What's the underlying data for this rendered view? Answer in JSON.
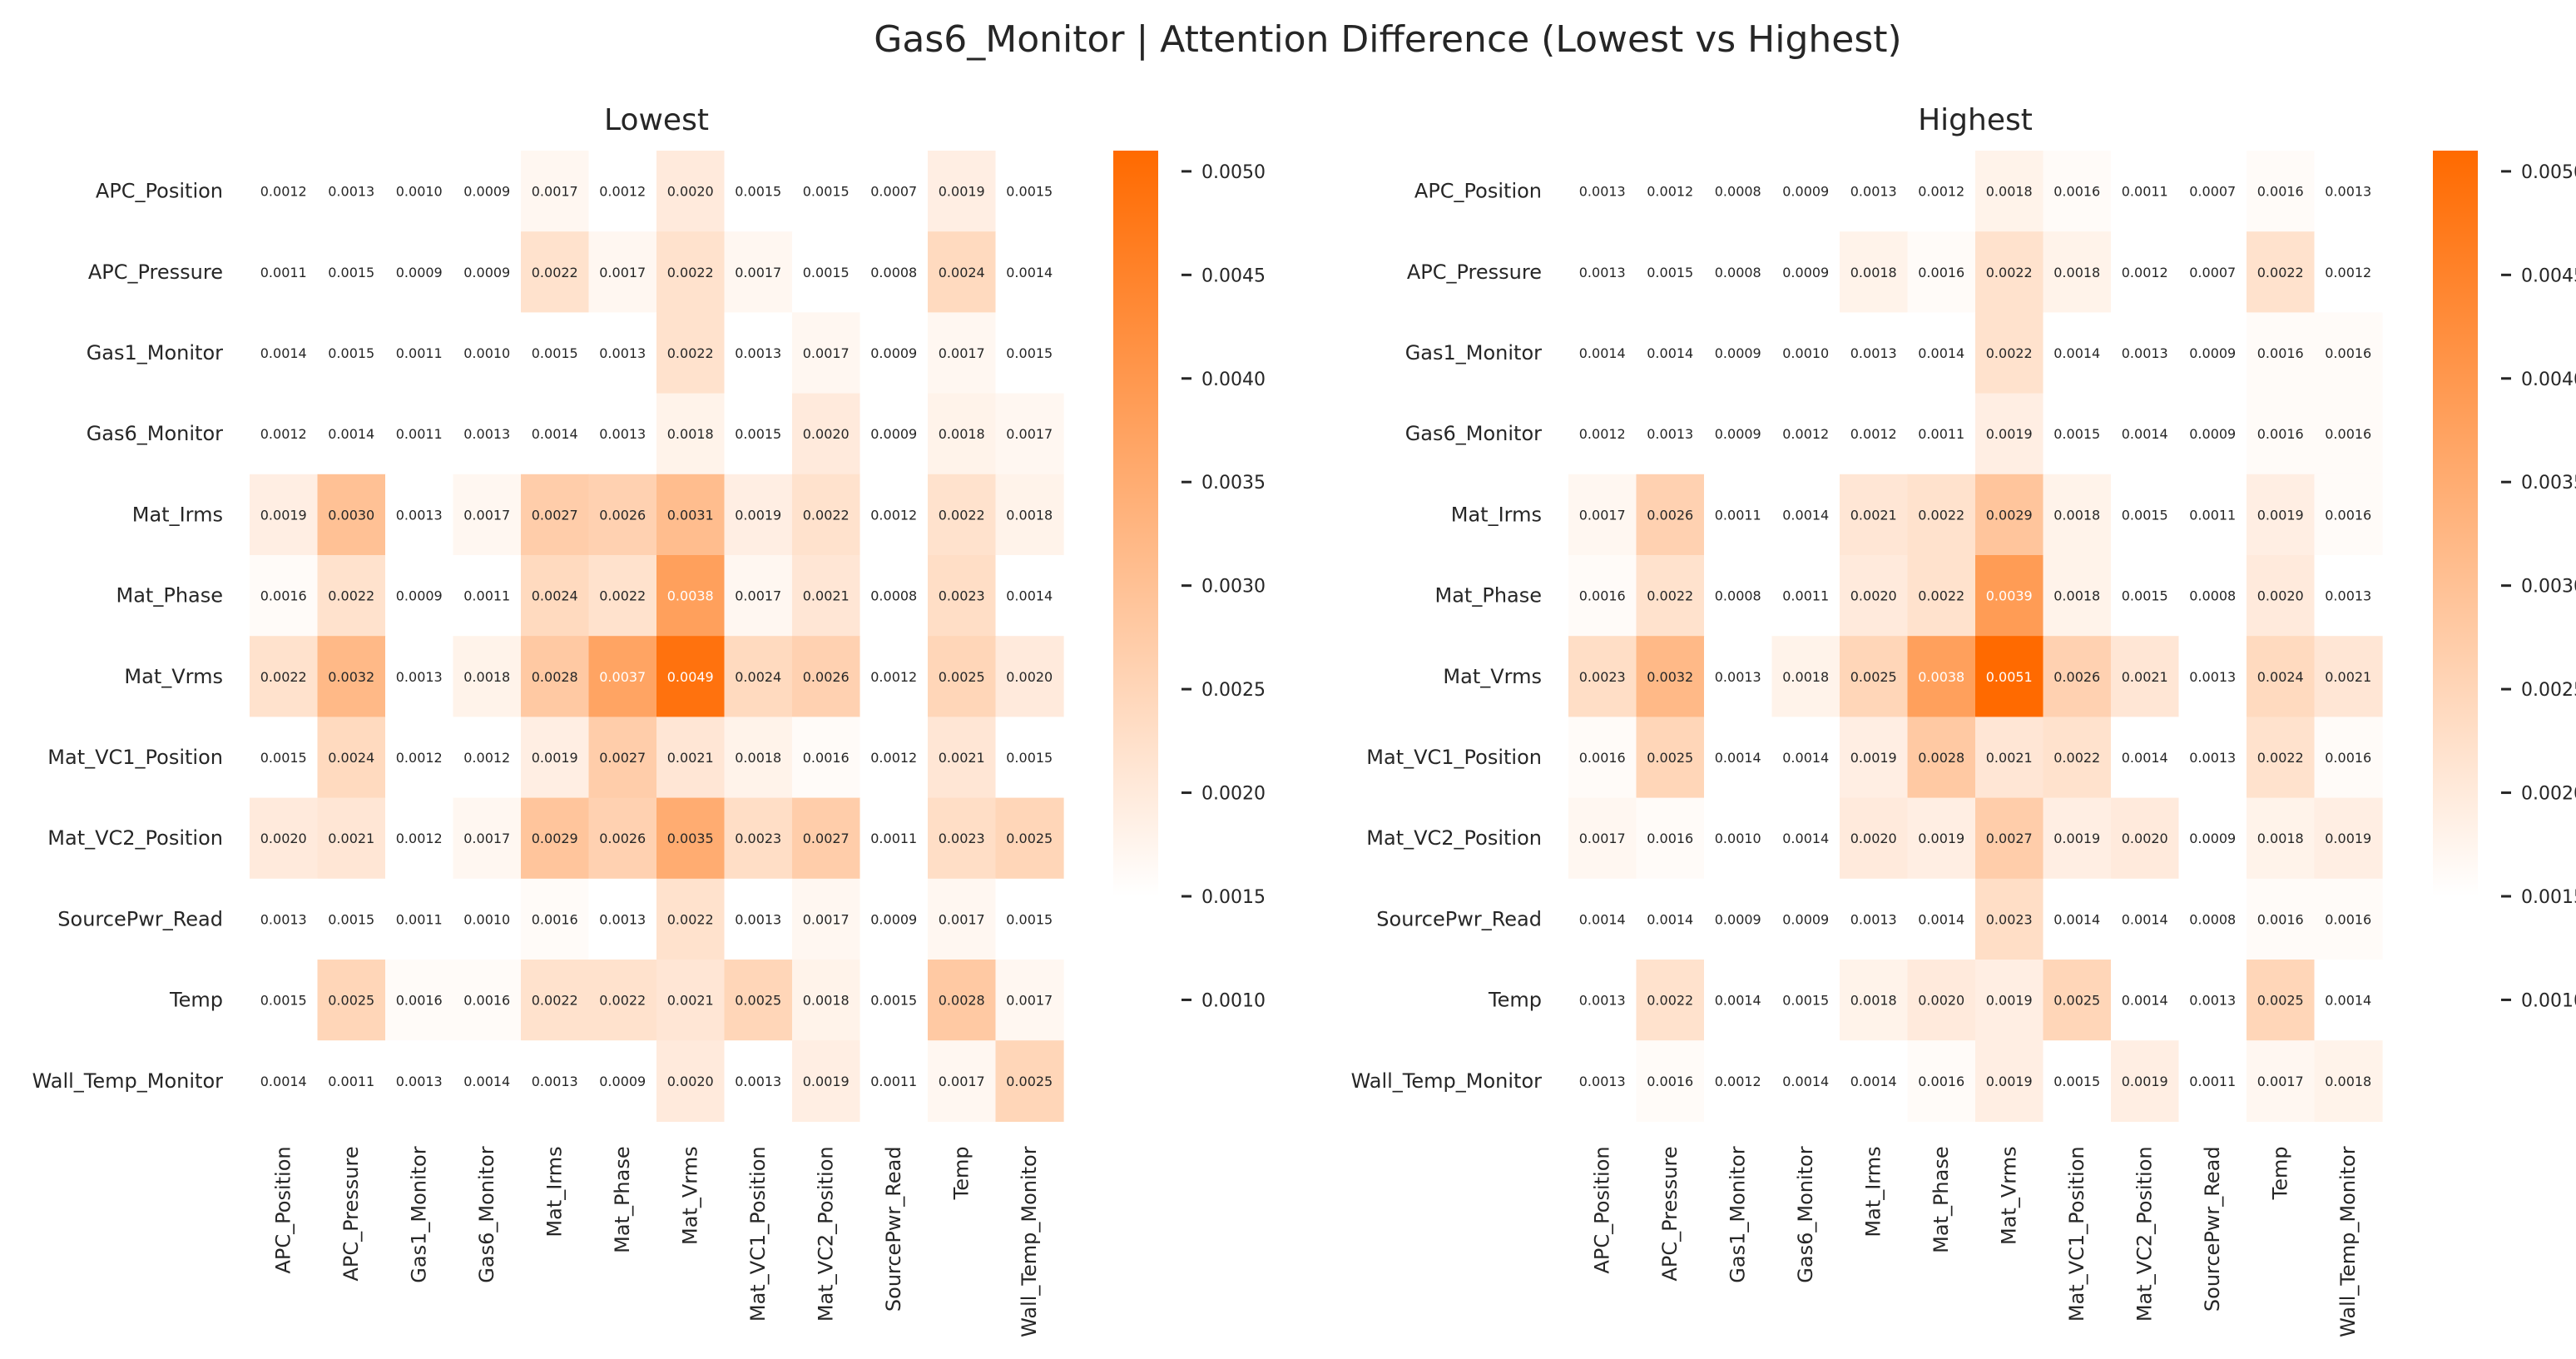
{
  "figure": {
    "title": "Gas6_Monitor | Attention Difference (Lowest vs Highest)"
  },
  "colorbar": {
    "min": 0.0015,
    "max": 0.0051,
    "low_color": "#ffffff",
    "high_color": "#ff6a00",
    "ticks": [
      "0.0010",
      "0.0015",
      "0.0020",
      "0.0025",
      "0.0030",
      "0.0035",
      "0.0040",
      "0.0045",
      "0.0050"
    ]
  },
  "chart_data": [
    {
      "type": "heatmap",
      "title": "Lowest",
      "rows": [
        "APC_Position",
        "APC_Pressure",
        "Gas1_Monitor",
        "Gas6_Monitor",
        "Mat_Irms",
        "Mat_Phase",
        "Mat_Vrms",
        "Mat_VC1_Position",
        "Mat_VC2_Position",
        "SourcePwr_Read",
        "Temp",
        "Wall_Temp_Monitor"
      ],
      "columns": [
        "APC_Position",
        "APC_Pressure",
        "Gas1_Monitor",
        "Gas6_Monitor",
        "Mat_Irms",
        "Mat_Phase",
        "Mat_Vrms",
        "Mat_VC1_Position",
        "Mat_VC2_Position",
        "SourcePwr_Read",
        "Temp",
        "Wall_Temp_Monitor"
      ],
      "values": [
        [
          "0.0012",
          "0.0013",
          "0.0010",
          "0.0009",
          "0.0017",
          "0.0012",
          "0.0020",
          "0.0015",
          "0.0015",
          "0.0007",
          "0.0019",
          "0.0015"
        ],
        [
          "0.0011",
          "0.0015",
          "0.0009",
          "0.0009",
          "0.0022",
          "0.0017",
          "0.0022",
          "0.0017",
          "0.0015",
          "0.0008",
          "0.0024",
          "0.0014"
        ],
        [
          "0.0014",
          "0.0015",
          "0.0011",
          "0.0010",
          "0.0015",
          "0.0013",
          "0.0022",
          "0.0013",
          "0.0017",
          "0.0009",
          "0.0017",
          "0.0015"
        ],
        [
          "0.0012",
          "0.0014",
          "0.0011",
          "0.0013",
          "0.0014",
          "0.0013",
          "0.0018",
          "0.0015",
          "0.0020",
          "0.0009",
          "0.0018",
          "0.0017"
        ],
        [
          "0.0019",
          "0.0030",
          "0.0013",
          "0.0017",
          "0.0027",
          "0.0026",
          "0.0031",
          "0.0019",
          "0.0022",
          "0.0012",
          "0.0022",
          "0.0018"
        ],
        [
          "0.0016",
          "0.0022",
          "0.0009",
          "0.0011",
          "0.0024",
          "0.0022",
          "0.0038",
          "0.0017",
          "0.0021",
          "0.0008",
          "0.0023",
          "0.0014"
        ],
        [
          "0.0022",
          "0.0032",
          "0.0013",
          "0.0018",
          "0.0028",
          "0.0037",
          "0.0049",
          "0.0024",
          "0.0026",
          "0.0012",
          "0.0025",
          "0.0020"
        ],
        [
          "0.0015",
          "0.0024",
          "0.0012",
          "0.0012",
          "0.0019",
          "0.0027",
          "0.0021",
          "0.0018",
          "0.0016",
          "0.0012",
          "0.0021",
          "0.0015"
        ],
        [
          "0.0020",
          "0.0021",
          "0.0012",
          "0.0017",
          "0.0029",
          "0.0026",
          "0.0035",
          "0.0023",
          "0.0027",
          "0.0011",
          "0.0023",
          "0.0025"
        ],
        [
          "0.0013",
          "0.0015",
          "0.0011",
          "0.0010",
          "0.0016",
          "0.0013",
          "0.0022",
          "0.0013",
          "0.0017",
          "0.0009",
          "0.0017",
          "0.0015"
        ],
        [
          "0.0015",
          "0.0025",
          "0.0016",
          "0.0016",
          "0.0022",
          "0.0022",
          "0.0021",
          "0.0025",
          "0.0018",
          "0.0015",
          "0.0028",
          "0.0017"
        ],
        [
          "0.0014",
          "0.0011",
          "0.0013",
          "0.0014",
          "0.0013",
          "0.0009",
          "0.0020",
          "0.0013",
          "0.0019",
          "0.0011",
          "0.0017",
          "0.0025"
        ]
      ]
    },
    {
      "type": "heatmap",
      "title": "Highest",
      "rows": [
        "APC_Position",
        "APC_Pressure",
        "Gas1_Monitor",
        "Gas6_Monitor",
        "Mat_Irms",
        "Mat_Phase",
        "Mat_Vrms",
        "Mat_VC1_Position",
        "Mat_VC2_Position",
        "SourcePwr_Read",
        "Temp",
        "Wall_Temp_Monitor"
      ],
      "columns": [
        "APC_Position",
        "APC_Pressure",
        "Gas1_Monitor",
        "Gas6_Monitor",
        "Mat_Irms",
        "Mat_Phase",
        "Mat_Vrms",
        "Mat_VC1_Position",
        "Mat_VC2_Position",
        "SourcePwr_Read",
        "Temp",
        "Wall_Temp_Monitor"
      ],
      "values": [
        [
          "0.0013",
          "0.0012",
          "0.0008",
          "0.0009",
          "0.0013",
          "0.0012",
          "0.0018",
          "0.0016",
          "0.0011",
          "0.0007",
          "0.0016",
          "0.0013"
        ],
        [
          "0.0013",
          "0.0015",
          "0.0008",
          "0.0009",
          "0.0018",
          "0.0016",
          "0.0022",
          "0.0018",
          "0.0012",
          "0.0007",
          "0.0022",
          "0.0012"
        ],
        [
          "0.0014",
          "0.0014",
          "0.0009",
          "0.0010",
          "0.0013",
          "0.0014",
          "0.0022",
          "0.0014",
          "0.0013",
          "0.0009",
          "0.0016",
          "0.0016"
        ],
        [
          "0.0012",
          "0.0013",
          "0.0009",
          "0.0012",
          "0.0012",
          "0.0011",
          "0.0019",
          "0.0015",
          "0.0014",
          "0.0009",
          "0.0016",
          "0.0016"
        ],
        [
          "0.0017",
          "0.0026",
          "0.0011",
          "0.0014",
          "0.0021",
          "0.0022",
          "0.0029",
          "0.0018",
          "0.0015",
          "0.0011",
          "0.0019",
          "0.0016"
        ],
        [
          "0.0016",
          "0.0022",
          "0.0008",
          "0.0011",
          "0.0020",
          "0.0022",
          "0.0039",
          "0.0018",
          "0.0015",
          "0.0008",
          "0.0020",
          "0.0013"
        ],
        [
          "0.0023",
          "0.0032",
          "0.0013",
          "0.0018",
          "0.0025",
          "0.0038",
          "0.0051",
          "0.0026",
          "0.0021",
          "0.0013",
          "0.0024",
          "0.0021"
        ],
        [
          "0.0016",
          "0.0025",
          "0.0014",
          "0.0014",
          "0.0019",
          "0.0028",
          "0.0021",
          "0.0022",
          "0.0014",
          "0.0013",
          "0.0022",
          "0.0016"
        ],
        [
          "0.0017",
          "0.0016",
          "0.0010",
          "0.0014",
          "0.0020",
          "0.0019",
          "0.0027",
          "0.0019",
          "0.0020",
          "0.0009",
          "0.0018",
          "0.0019"
        ],
        [
          "0.0014",
          "0.0014",
          "0.0009",
          "0.0009",
          "0.0013",
          "0.0014",
          "0.0023",
          "0.0014",
          "0.0014",
          "0.0008",
          "0.0016",
          "0.0016"
        ],
        [
          "0.0013",
          "0.0022",
          "0.0014",
          "0.0015",
          "0.0018",
          "0.0020",
          "0.0019",
          "0.0025",
          "0.0014",
          "0.0013",
          "0.0025",
          "0.0014"
        ],
        [
          "0.0013",
          "0.0016",
          "0.0012",
          "0.0014",
          "0.0014",
          "0.0016",
          "0.0019",
          "0.0015",
          "0.0019",
          "0.0011",
          "0.0017",
          "0.0018"
        ]
      ]
    }
  ]
}
